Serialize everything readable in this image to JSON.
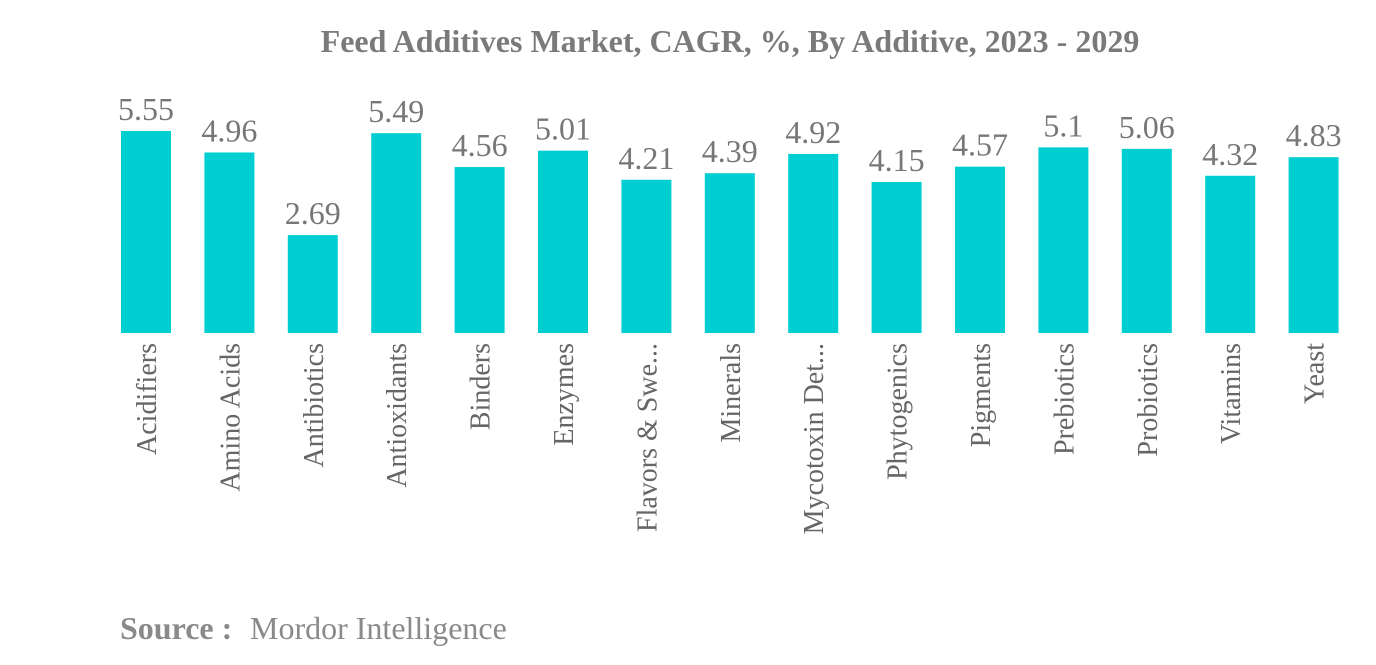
{
  "chart_data": {
    "type": "bar",
    "title": "Feed Additives Market, CAGR, %, By Additive, 2023 - 2029",
    "categories": [
      "Acidifiers",
      "Amino Acids",
      "Antibiotics",
      "Antioxidants",
      "Binders",
      "Enzymes",
      "Flavors & Swe...",
      "Minerals",
      "Mycotoxin Det...",
      "Phytogenics",
      "Pigments",
      "Prebiotics",
      "Probiotics",
      "Vitamins",
      "Yeast"
    ],
    "values": [
      5.55,
      4.96,
      2.69,
      5.49,
      4.56,
      5.01,
      4.21,
      4.39,
      4.92,
      4.15,
      4.57,
      5.1,
      5.06,
      4.32,
      4.83
    ],
    "value_labels": [
      "5.55",
      "4.96",
      "2.69",
      "5.49",
      "4.56",
      "5.01",
      "4.21",
      "4.39",
      "4.92",
      "4.15",
      "4.57",
      "5.1",
      "5.06",
      "4.32",
      "4.83"
    ],
    "xlabel": "",
    "ylabel": "",
    "ylim": [
      0,
      5.55
    ],
    "grid": false,
    "legend": "none",
    "bar_color": "#00CED1"
  },
  "source": {
    "label": "Source :",
    "value": "Mordor Intelligence"
  }
}
